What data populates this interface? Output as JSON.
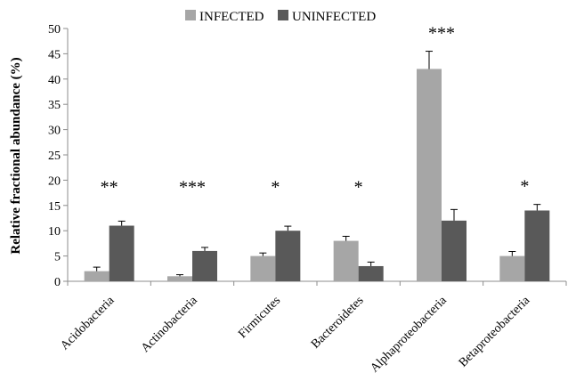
{
  "chart_data": {
    "type": "bar",
    "title": "",
    "xlabel": "",
    "ylabel": "Relative fractional abundance (%)",
    "ylim": [
      0,
      50
    ],
    "yticks": [
      0,
      5,
      10,
      15,
      20,
      25,
      30,
      35,
      40,
      45,
      50
    ],
    "grid": false,
    "legend_position": "top-center",
    "categories": [
      "Acidobacteria",
      "Actinobacteria",
      "Firmicutes",
      "Bacteroidetes",
      "Alphaproteobacteria",
      "Betaproteobacteria"
    ],
    "series": [
      {
        "name": "INFECTED",
        "color": "#a6a6a6",
        "values": [
          2,
          1,
          5,
          8,
          42,
          5
        ],
        "errors": [
          0.8,
          0.3,
          0.6,
          0.9,
          3.5,
          0.9
        ]
      },
      {
        "name": "UNINFECTED",
        "color": "#595959",
        "values": [
          11,
          6,
          10,
          3,
          12,
          14
        ],
        "errors": [
          0.9,
          0.7,
          0.9,
          0.8,
          2.2,
          1.2
        ]
      }
    ],
    "significance": [
      "**",
      "***",
      "*",
      "*",
      "***",
      "*"
    ]
  }
}
